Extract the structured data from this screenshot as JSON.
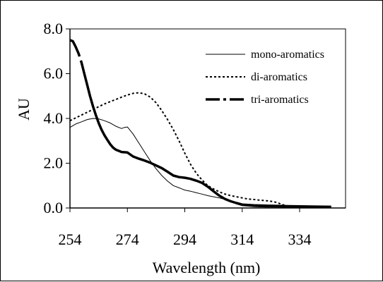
{
  "chart_data": {
    "type": "line",
    "title": "",
    "xlabel": "Wavelength (nm)",
    "ylabel": "AU",
    "xlim": [
      254,
      350
    ],
    "ylim": [
      0,
      8
    ],
    "x_ticks": [
      254,
      274,
      294,
      314,
      334
    ],
    "x_tick_labels": [
      "254",
      "274",
      "294",
      "314",
      "334"
    ],
    "y_ticks": [
      0,
      2,
      4,
      6,
      8
    ],
    "y_tick_labels": [
      "0.0",
      "2.0",
      "4.0",
      "6.0",
      "8.0"
    ],
    "grid": false,
    "legend_position": "top-right",
    "series": [
      {
        "name": "mono-aromatics",
        "style": "solid-thin",
        "color": "#000000",
        "points": [
          [
            254,
            3.6
          ],
          [
            256,
            3.75
          ],
          [
            258,
            3.85
          ],
          [
            260,
            3.95
          ],
          [
            262,
            4.0
          ],
          [
            264,
            3.98
          ],
          [
            266,
            3.9
          ],
          [
            268,
            3.8
          ],
          [
            270,
            3.65
          ],
          [
            272,
            3.55
          ],
          [
            273,
            3.6
          ],
          [
            274,
            3.62
          ],
          [
            276,
            3.3
          ],
          [
            278,
            2.9
          ],
          [
            280,
            2.5
          ],
          [
            282,
            2.1
          ],
          [
            284,
            1.75
          ],
          [
            286,
            1.45
          ],
          [
            288,
            1.2
          ],
          [
            290,
            1.0
          ],
          [
            292,
            0.9
          ],
          [
            294,
            0.8
          ],
          [
            296,
            0.75
          ],
          [
            298,
            0.68
          ],
          [
            300,
            0.62
          ],
          [
            302,
            0.55
          ],
          [
            304,
            0.5
          ],
          [
            306,
            0.45
          ],
          [
            308,
            0.38
          ],
          [
            310,
            0.28
          ],
          [
            312,
            0.18
          ],
          [
            314,
            0.1
          ],
          [
            318,
            0.06
          ],
          [
            322,
            0.04
          ],
          [
            330,
            0.03
          ],
          [
            340,
            0.03
          ],
          [
            345,
            0.03
          ]
        ]
      },
      {
        "name": "di-aromatics",
        "style": "dotted",
        "color": "#000000",
        "points": [
          [
            254,
            3.9
          ],
          [
            258,
            4.15
          ],
          [
            262,
            4.4
          ],
          [
            266,
            4.65
          ],
          [
            270,
            4.85
          ],
          [
            272,
            4.95
          ],
          [
            274,
            5.05
          ],
          [
            276,
            5.12
          ],
          [
            278,
            5.15
          ],
          [
            280,
            5.1
          ],
          [
            282,
            4.95
          ],
          [
            284,
            4.7
          ],
          [
            286,
            4.35
          ],
          [
            288,
            3.95
          ],
          [
            290,
            3.5
          ],
          [
            292,
            3.0
          ],
          [
            294,
            2.45
          ],
          [
            296,
            1.95
          ],
          [
            298,
            1.55
          ],
          [
            300,
            1.25
          ],
          [
            302,
            1.0
          ],
          [
            304,
            0.85
          ],
          [
            306,
            0.72
          ],
          [
            308,
            0.62
          ],
          [
            310,
            0.55
          ],
          [
            312,
            0.5
          ],
          [
            314,
            0.45
          ],
          [
            316,
            0.4
          ],
          [
            318,
            0.38
          ],
          [
            320,
            0.35
          ],
          [
            322,
            0.33
          ],
          [
            324,
            0.3
          ],
          [
            326,
            0.25
          ],
          [
            328,
            0.15
          ],
          [
            330,
            0.08
          ],
          [
            334,
            0.04
          ],
          [
            340,
            0.03
          ],
          [
            345,
            0.03
          ]
        ]
      },
      {
        "name": "tri-aromatics",
        "style": "dash-dot-thick",
        "color": "#000000",
        "points": [
          [
            254,
            7.5
          ],
          [
            255,
            7.45
          ],
          [
            256,
            7.2
          ],
          [
            257,
            6.9
          ],
          [
            258,
            6.5
          ],
          [
            259,
            6.0
          ],
          [
            260,
            5.5
          ],
          [
            261,
            5.0
          ],
          [
            262,
            4.55
          ],
          [
            263,
            4.15
          ],
          [
            264,
            3.8
          ],
          [
            265,
            3.5
          ],
          [
            266,
            3.25
          ],
          [
            267,
            3.05
          ],
          [
            268,
            2.85
          ],
          [
            269,
            2.7
          ],
          [
            270,
            2.6
          ],
          [
            271,
            2.55
          ],
          [
            272,
            2.5
          ],
          [
            274,
            2.48
          ],
          [
            276,
            2.3
          ],
          [
            278,
            2.2
          ],
          [
            280,
            2.12
          ],
          [
            282,
            2.02
          ],
          [
            284,
            1.9
          ],
          [
            286,
            1.78
          ],
          [
            288,
            1.62
          ],
          [
            290,
            1.45
          ],
          [
            292,
            1.38
          ],
          [
            294,
            1.35
          ],
          [
            296,
            1.3
          ],
          [
            298,
            1.22
          ],
          [
            300,
            1.12
          ],
          [
            302,
            0.95
          ],
          [
            304,
            0.75
          ],
          [
            306,
            0.55
          ],
          [
            308,
            0.4
          ],
          [
            310,
            0.3
          ],
          [
            312,
            0.22
          ],
          [
            314,
            0.15
          ],
          [
            318,
            0.12
          ],
          [
            322,
            0.1
          ],
          [
            330,
            0.08
          ],
          [
            340,
            0.06
          ],
          [
            345,
            0.05
          ]
        ]
      }
    ]
  }
}
